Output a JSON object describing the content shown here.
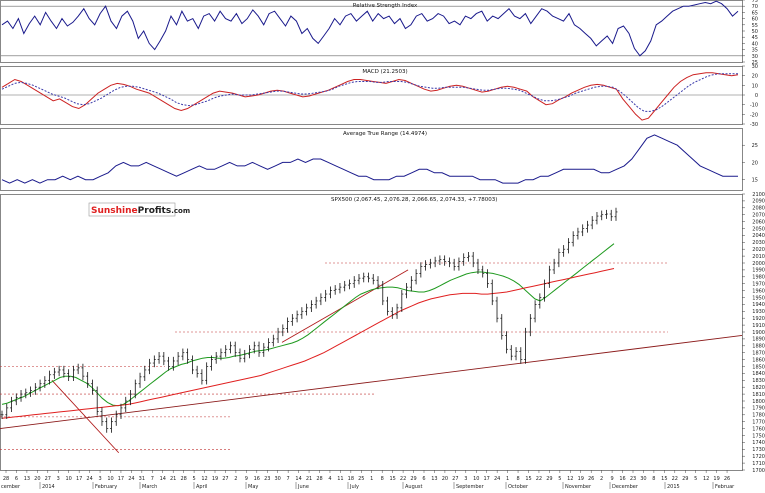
{
  "chart_data": [
    {
      "type": "line",
      "title": "Relative Strength Index",
      "ylim": [
        25,
        75
      ],
      "yticks": [
        25,
        30,
        35,
        40,
        45,
        50,
        55,
        60,
        65,
        70,
        75
      ],
      "guides": [
        30,
        70
      ],
      "series": [
        {
          "color": "#1a1a8c",
          "values": [
            55,
            58,
            52,
            60,
            48,
            56,
            62,
            55,
            65,
            58,
            52,
            60,
            54,
            57,
            62,
            68,
            60,
            55,
            64,
            70,
            58,
            52,
            62,
            66,
            58,
            44,
            50,
            40,
            35,
            42,
            50,
            62,
            55,
            66,
            58,
            60,
            52,
            62,
            64,
            58,
            66,
            60,
            58,
            64,
            56,
            60,
            67,
            62,
            55,
            64,
            66,
            60,
            54,
            62,
            58,
            48,
            52,
            44,
            40,
            46,
            52,
            60,
            55,
            62,
            64,
            58,
            62,
            66,
            58,
            64,
            60,
            62,
            56,
            60,
            52,
            55,
            62,
            64,
            58,
            60,
            64,
            62,
            56,
            58,
            55,
            62,
            60,
            64,
            66,
            58,
            62,
            60,
            64,
            68,
            62,
            60,
            64,
            56,
            62,
            68,
            66,
            62,
            60,
            58,
            64,
            55,
            52,
            48,
            44,
            38,
            42,
            46,
            40,
            52,
            54,
            48,
            36,
            30,
            34,
            42,
            55,
            58,
            62,
            66,
            68,
            70,
            70,
            71,
            72,
            73,
            72,
            74,
            72,
            68,
            62,
            66
          ]
        }
      ]
    },
    {
      "type": "line",
      "title": "MACD (21.2503)",
      "ylim": [
        -30,
        30
      ],
      "yticks": [
        -30,
        -20,
        -10,
        0,
        10,
        20,
        30
      ],
      "guides": [
        0
      ],
      "series": [
        {
          "color": "#cc2222",
          "values": [
            8,
            12,
            16,
            14,
            10,
            6,
            2,
            -2,
            -6,
            -4,
            -8,
            -12,
            -14,
            -10,
            -4,
            2,
            6,
            10,
            12,
            11,
            9,
            6,
            4,
            2,
            -2,
            -6,
            -10,
            -14,
            -16,
            -14,
            -10,
            -6,
            -2,
            2,
            4,
            3,
            2,
            0,
            -2,
            -1,
            0,
            2,
            4,
            5,
            4,
            2,
            0,
            -2,
            -1,
            1,
            3,
            5,
            8,
            11,
            14,
            16,
            16,
            15,
            14,
            13,
            12,
            14,
            16,
            15,
            12,
            9,
            6,
            4,
            5,
            7,
            9,
            10,
            9,
            7,
            5,
            3,
            4,
            6,
            8,
            9,
            8,
            6,
            4,
            -2,
            -6,
            -10,
            -9,
            -5,
            -2,
            2,
            5,
            8,
            10,
            11,
            10,
            8,
            6,
            -4,
            -12,
            -20,
            -26,
            -24,
            -16,
            -8,
            0,
            8,
            14,
            18,
            21,
            22,
            23,
            23,
            22,
            21,
            20,
            21
          ]
        },
        {
          "color": "#3a3aaa",
          "values": [
            6,
            9,
            12,
            13,
            12,
            10,
            7,
            4,
            1,
            -1,
            -3,
            -6,
            -9,
            -10,
            -9,
            -6,
            -3,
            1,
            5,
            8,
            9,
            9,
            8,
            6,
            4,
            2,
            -1,
            -4,
            -8,
            -10,
            -11,
            -10,
            -8,
            -6,
            -3,
            -1,
            0,
            1,
            0,
            0,
            0,
            1,
            2,
            3,
            4,
            4,
            3,
            2,
            1,
            1,
            2,
            3,
            4,
            6,
            9,
            11,
            13,
            14,
            14,
            14,
            13,
            13,
            14,
            14,
            14,
            13,
            11,
            9,
            8,
            7,
            7,
            8,
            8,
            8,
            8,
            7,
            6,
            5,
            5,
            6,
            7,
            7,
            6,
            5,
            2,
            -1,
            -4,
            -6,
            -6,
            -5,
            -3,
            -1,
            2,
            4,
            6,
            8,
            9,
            9,
            8,
            4,
            -1,
            -7,
            -13,
            -17,
            -17,
            -15,
            -11,
            -6,
            -1,
            4,
            9,
            13,
            16,
            19,
            21,
            22,
            22,
            22,
            22
          ]
        }
      ]
    },
    {
      "type": "line",
      "title": "Average True Range (14.4974)",
      "ylim": [
        12,
        30
      ],
      "yticks": [
        15,
        20,
        25
      ],
      "series": [
        {
          "color": "#1a1a8c",
          "values": [
            15,
            14,
            15,
            14,
            15,
            14,
            15,
            15,
            16,
            15,
            16,
            15,
            15,
            16,
            17,
            19,
            20,
            19,
            19,
            20,
            19,
            18,
            17,
            16,
            17,
            18,
            19,
            18,
            18,
            19,
            20,
            19,
            19,
            20,
            19,
            18,
            19,
            20,
            20,
            21,
            20,
            21,
            21,
            20,
            19,
            18,
            17,
            16,
            16,
            15,
            15,
            15,
            16,
            16,
            17,
            18,
            18,
            17,
            17,
            16,
            16,
            16,
            16,
            15,
            15,
            15,
            14,
            14,
            14,
            15,
            15,
            16,
            16,
            17,
            18,
            18,
            18,
            18,
            18,
            17,
            17,
            18,
            19,
            21,
            24,
            27,
            28,
            27,
            26,
            25,
            23,
            21,
            19,
            18,
            17,
            16,
            16,
            16
          ]
        }
      ]
    },
    {
      "type": "line",
      "title": "SPX500 (2,067.45, 2,076.28, 2,066.65, 2,074.33, +7.78003)",
      "ylabel": "",
      "ylim": [
        1700,
        2100
      ],
      "yticks": [
        1700,
        1710,
        1720,
        1730,
        1740,
        1750,
        1760,
        1770,
        1780,
        1790,
        1800,
        1810,
        1820,
        1830,
        1840,
        1850,
        1860,
        1870,
        1880,
        1890,
        1900,
        1910,
        1920,
        1930,
        1940,
        1950,
        1960,
        1970,
        1980,
        1990,
        2000,
        2010,
        2020,
        2030,
        2040,
        2050,
        2060,
        2070,
        2080,
        2090,
        2100
      ],
      "x_labels": [
        "28",
        "6",
        "13",
        "20",
        "27",
        "3",
        "10",
        "17",
        "24",
        "3",
        "10",
        "17",
        "24",
        "31",
        "7",
        "14",
        "21",
        "28",
        "5",
        "12",
        "19",
        "27",
        "2",
        "9",
        "16",
        "23",
        "30",
        "7",
        "14",
        "21",
        "28",
        "4",
        "11",
        "18",
        "25",
        "1",
        "8",
        "15",
        "22",
        "29",
        "6",
        "13",
        "20",
        "27",
        "3",
        "10",
        "17",
        "24",
        "1",
        "8",
        "15",
        "22",
        "29",
        "5",
        "12",
        "19",
        "26",
        "2",
        "9",
        "16",
        "23",
        "30",
        "8",
        "15",
        "22",
        "29",
        "5",
        "12",
        "19",
        "26"
      ],
      "month_labels": [
        "cember",
        "2014",
        "February",
        "March",
        "April",
        "May",
        "June",
        "July",
        "August",
        "September",
        "October",
        "November",
        "December",
        "2015",
        "Februar"
      ],
      "price": [
        1780,
        1790,
        1800,
        1805,
        1810,
        1812,
        1815,
        1820,
        1825,
        1830,
        1838,
        1842,
        1845,
        1840,
        1835,
        1845,
        1848,
        1836,
        1825,
        1815,
        1785,
        1770,
        1760,
        1770,
        1780,
        1790,
        1800,
        1810,
        1825,
        1835,
        1845,
        1855,
        1860,
        1865,
        1858,
        1850,
        1858,
        1865,
        1870,
        1860,
        1845,
        1840,
        1830,
        1850,
        1860,
        1865,
        1870,
        1875,
        1880,
        1870,
        1862,
        1868,
        1875,
        1880,
        1870,
        1878,
        1885,
        1890,
        1900,
        1905,
        1915,
        1920,
        1925,
        1930,
        1935,
        1940,
        1945,
        1950,
        1955,
        1960,
        1962,
        1965,
        1968,
        1970,
        1975,
        1978,
        1980,
        1978,
        1975,
        1968,
        1945,
        1930,
        1925,
        1935,
        1955,
        1965,
        1975,
        1985,
        1995,
        1998,
        2000,
        2003,
        2005,
        2002,
        2000,
        1995,
        2002,
        2008,
        2010,
        2000,
        1990,
        1985,
        1970,
        1945,
        1920,
        1895,
        1875,
        1865,
        1872,
        1860,
        1900,
        1920,
        1940,
        1950,
        1970,
        1990,
        2000,
        2015,
        2020,
        2030,
        2040,
        2045,
        2050,
        2055,
        2062,
        2068,
        2070,
        2071,
        2067,
        2074
      ],
      "series": [
        {
          "name": "",
          "color": "#1f9a1f",
          "values": [
            1795,
            1797,
            1800,
            1803,
            1806,
            1810,
            1814,
            1818,
            1822,
            1826,
            1830,
            1834,
            1836,
            1836,
            1834,
            1830,
            1826,
            1820,
            1812,
            1804,
            1798,
            1794,
            1793,
            1795,
            1800,
            1806,
            1812,
            1818,
            1824,
            1830,
            1836,
            1842,
            1847,
            1850,
            1853,
            1855,
            1858,
            1860,
            1862,
            1863,
            1863,
            1862,
            1862,
            1863,
            1865,
            1866,
            1868,
            1870,
            1872,
            1873,
            1874,
            1876,
            1878,
            1880,
            1882,
            1884,
            1887,
            1891,
            1896,
            1902,
            1908,
            1914,
            1920,
            1926,
            1932,
            1938,
            1944,
            1950,
            1955,
            1958,
            1961,
            1963,
            1964,
            1965,
            1965,
            1964,
            1962,
            1960,
            1959,
            1958,
            1958,
            1960,
            1963,
            1967,
            1971,
            1975,
            1978,
            1981,
            1984,
            1986,
            1987,
            1987,
            1986,
            1985,
            1983,
            1981,
            1978,
            1974,
            1969,
            1962,
            1955,
            1948,
            1945,
            1950,
            1956,
            1962,
            1968,
            1974,
            1980,
            1986,
            1992,
            1998,
            2004,
            2010,
            2016,
            2022,
            2028
          ]
        },
        {
          "name": "",
          "color": "#e02020",
          "values": [
            1775,
            1776,
            1777,
            1778,
            1779,
            1780,
            1781,
            1782,
            1783,
            1784,
            1785,
            1786,
            1787,
            1788,
            1789,
            1790,
            1791,
            1792,
            1793,
            1794,
            1795,
            1797,
            1799,
            1801,
            1803,
            1805,
            1807,
            1809,
            1811,
            1813,
            1815,
            1817,
            1819,
            1821,
            1823,
            1825,
            1827,
            1829,
            1831,
            1833,
            1835,
            1837,
            1840,
            1843,
            1846,
            1849,
            1852,
            1855,
            1858,
            1862,
            1866,
            1870,
            1875,
            1880,
            1885,
            1890,
            1895,
            1900,
            1905,
            1910,
            1915,
            1920,
            1925,
            1930,
            1934,
            1938,
            1942,
            1945,
            1948,
            1950,
            1952,
            1954,
            1955,
            1956,
            1956,
            1956,
            1955,
            1955,
            1956,
            1957,
            1958,
            1960,
            1962,
            1964,
            1966,
            1968,
            1970,
            1972,
            1974,
            1976,
            1978,
            1980,
            1982,
            1984,
            1986,
            1988,
            1990,
            1992
          ]
        }
      ],
      "dashed_levels": [
        2000,
        1900,
        1850,
        1810,
        1777,
        1730
      ],
      "trendlines": [
        {
          "color": "#8b1a1a",
          "from": [
            0,
            1760
          ],
          "to": [
            1,
            1895
          ]
        },
        {
          "color": "#b01a1a",
          "from": [
            0.07,
            1830
          ],
          "to": [
            0.16,
            1725
          ]
        },
        {
          "color": "#b01a1a",
          "from": [
            0.38,
            1885
          ],
          "to": [
            0.55,
            1990
          ]
        }
      ],
      "grid": false
    }
  ],
  "brand": {
    "word1": "Sunshine",
    "word2": "Profits",
    "suffix": ".com",
    "color1": "#e02020",
    "color2": "#222222"
  }
}
